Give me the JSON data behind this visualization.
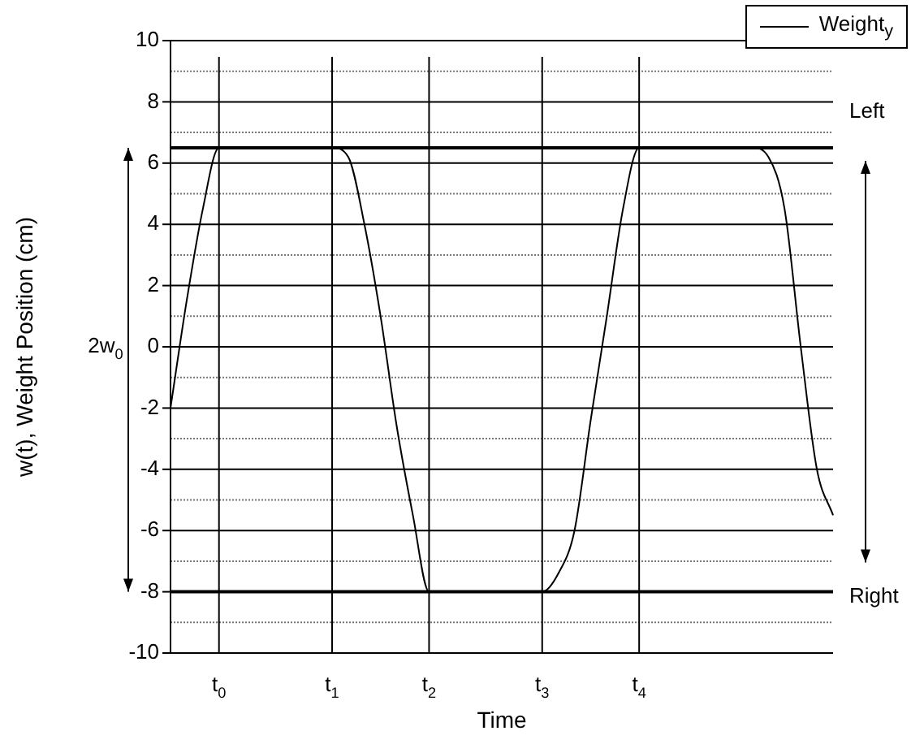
{
  "chart_data": {
    "type": "line",
    "xlabel": "Time",
    "ylabel": "w(t), Weight Position (cm)",
    "categories": [
      null,
      null,
      null,
      "t$_{0}$",
      null,
      null,
      null,
      null,
      null,
      null,
      "t$_{1}$",
      null,
      null,
      null,
      null,
      null,
      "t$_{2}$",
      null,
      null,
      null,
      null,
      null,
      null,
      "t$_{3}$",
      null,
      null,
      null,
      null,
      null,
      "t$_{4}$",
      null,
      null,
      null,
      null,
      null,
      null,
      null,
      null,
      null,
      null,
      null,
      null
    ],
    "ylim": [
      -10,
      10
    ],
    "yticks": [
      -10,
      {
        "value": -9,
        "label": null
      },
      -8,
      {
        "value": -7,
        "label": null
      },
      -6,
      {
        "value": -5,
        "label": null
      },
      -4,
      {
        "value": -3,
        "label": null
      },
      -2,
      {
        "value": -1,
        "label": null
      },
      0,
      {
        "value": 1,
        "label": null
      },
      2,
      {
        "value": 3,
        "label": null
      },
      4,
      {
        "value": 5,
        "label": null
      },
      6,
      {
        "value": 7,
        "label": null
      },
      8,
      {
        "value": 9,
        "label": null
      },
      10
    ],
    "grid": true,
    "legend": "top right",
    "marker": "none",
    "line_style": "solid",
    "series": [
      {
        "name": "Weight$_{y}$",
        "color": "#000000",
        "values": [
          -2,
          1.5,
          4.5,
          6.5,
          6.5,
          6.5,
          6.5,
          6.5,
          6.5,
          6.5,
          6.5,
          6.2,
          4,
          1,
          -2.6,
          -5.5,
          -8,
          -8,
          -8,
          -8,
          -8,
          -8,
          -8,
          -8,
          -7.4,
          -6,
          -2.4,
          1,
          4.5,
          6.5,
          6.5,
          6.5,
          6.5,
          6.5,
          6.5,
          6.5,
          6.5,
          6.2,
          4.5,
          0,
          -4,
          -5.5
        ]
      }
    ],
    "ref_lines": [
      {
        "axis": "y",
        "value": 6.5,
        "label": "Left"
      },
      {
        "axis": "y",
        "value": -8,
        "label": "Right"
      }
    ],
    "annotations": [
      "2w$_{0}$"
    ]
  }
}
